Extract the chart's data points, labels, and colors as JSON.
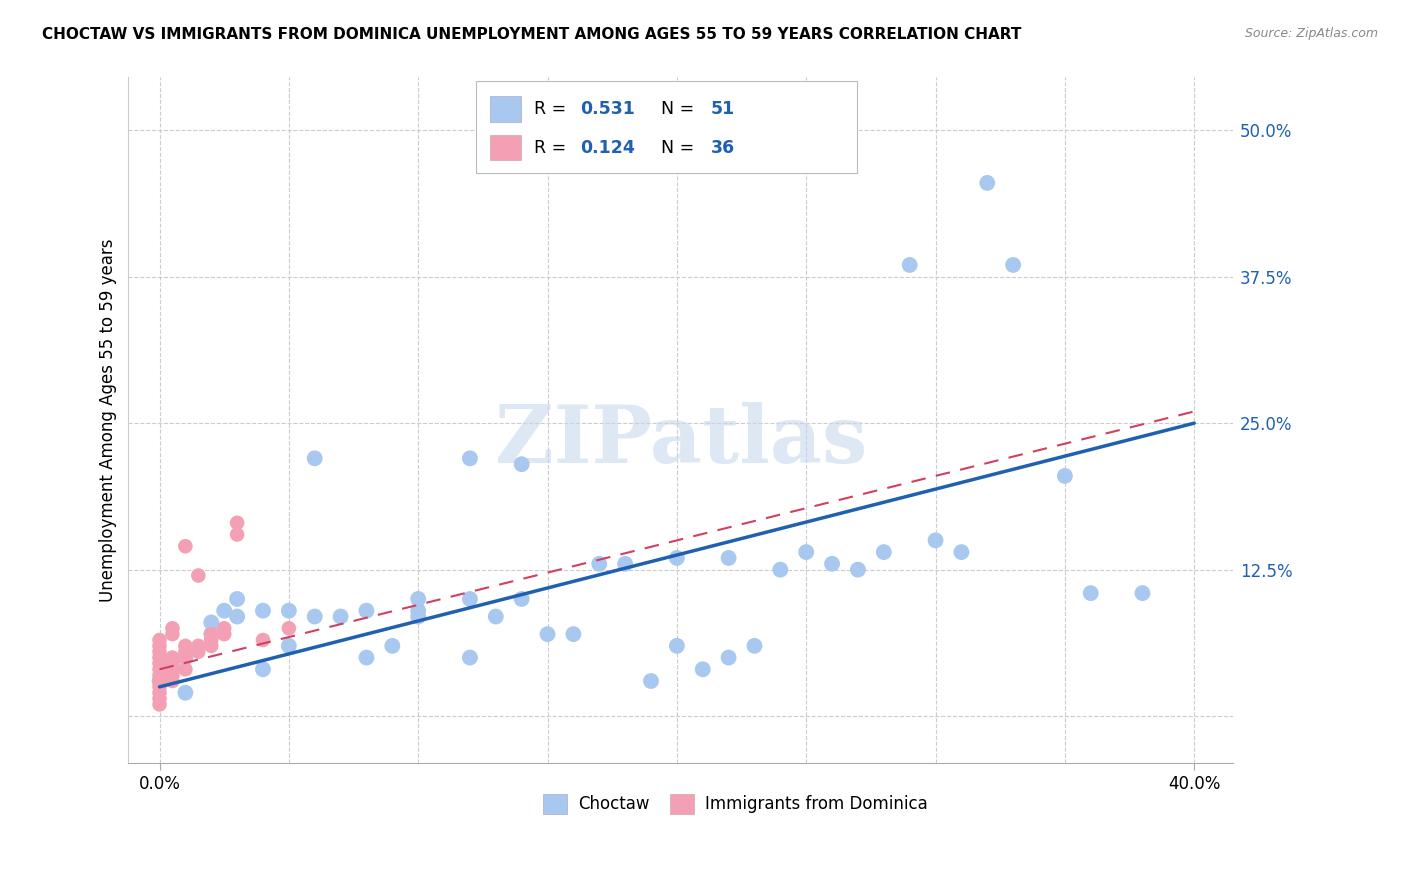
{
  "title": "CHOCTAW VS IMMIGRANTS FROM DOMINICA UNEMPLOYMENT AMONG AGES 55 TO 59 YEARS CORRELATION CHART",
  "source": "Source: ZipAtlas.com",
  "ylabel": "Unemployment Among Ages 55 to 59 years",
  "ytick_values": [
    0.0,
    0.125,
    0.25,
    0.375,
    0.5
  ],
  "ytick_labels": [
    "0.0%",
    "12.5%",
    "25.0%",
    "37.5%",
    "50.0%"
  ],
  "xtick_values": [
    0.0,
    0.4
  ],
  "xtick_labels": [
    "0.0%",
    "40.0%"
  ],
  "xmin": -0.012,
  "xmax": 0.415,
  "ymin": -0.04,
  "ymax": 0.545,
  "blue_color": "#a8c8f0",
  "pink_color": "#f4a0b4",
  "line_blue_color": "#2060b0",
  "line_pink_color": "#d04060",
  "legend_r1": "R = ",
  "legend_v1": "0.531",
  "legend_n1": "N = ",
  "legend_nv1": "51",
  "legend_r2": "R = ",
  "legend_v2": "0.124",
  "legend_n2": "N = ",
  "legend_nv2": "36",
  "legend_label_blue": "Choctaw",
  "legend_label_pink": "Immigrants from Dominica",
  "watermark": "ZIPatlas",
  "blue_points": [
    [
      0.0,
      0.03
    ],
    [
      0.01,
      0.05
    ],
    [
      0.01,
      0.02
    ],
    [
      0.02,
      0.08
    ],
    [
      0.02,
      0.07
    ],
    [
      0.025,
      0.09
    ],
    [
      0.03,
      0.1
    ],
    [
      0.03,
      0.085
    ],
    [
      0.04,
      0.04
    ],
    [
      0.04,
      0.09
    ],
    [
      0.05,
      0.06
    ],
    [
      0.05,
      0.09
    ],
    [
      0.06,
      0.22
    ],
    [
      0.06,
      0.085
    ],
    [
      0.07,
      0.085
    ],
    [
      0.08,
      0.05
    ],
    [
      0.08,
      0.09
    ],
    [
      0.09,
      0.06
    ],
    [
      0.1,
      0.1
    ],
    [
      0.1,
      0.09
    ],
    [
      0.1,
      0.085
    ],
    [
      0.12,
      0.22
    ],
    [
      0.12,
      0.1
    ],
    [
      0.12,
      0.05
    ],
    [
      0.13,
      0.085
    ],
    [
      0.14,
      0.215
    ],
    [
      0.14,
      0.1
    ],
    [
      0.15,
      0.07
    ],
    [
      0.16,
      0.07
    ],
    [
      0.17,
      0.13
    ],
    [
      0.18,
      0.13
    ],
    [
      0.19,
      0.03
    ],
    [
      0.2,
      0.135
    ],
    [
      0.2,
      0.06
    ],
    [
      0.21,
      0.04
    ],
    [
      0.22,
      0.135
    ],
    [
      0.22,
      0.05
    ],
    [
      0.23,
      0.06
    ],
    [
      0.24,
      0.125
    ],
    [
      0.25,
      0.14
    ],
    [
      0.26,
      0.13
    ],
    [
      0.27,
      0.125
    ],
    [
      0.28,
      0.14
    ],
    [
      0.29,
      0.385
    ],
    [
      0.3,
      0.15
    ],
    [
      0.31,
      0.14
    ],
    [
      0.32,
      0.455
    ],
    [
      0.33,
      0.385
    ],
    [
      0.35,
      0.205
    ],
    [
      0.36,
      0.105
    ],
    [
      0.38,
      0.105
    ]
  ],
  "pink_points": [
    [
      0.0,
      0.01
    ],
    [
      0.0,
      0.015
    ],
    [
      0.0,
      0.02
    ],
    [
      0.0,
      0.025
    ],
    [
      0.0,
      0.03
    ],
    [
      0.0,
      0.035
    ],
    [
      0.0,
      0.04
    ],
    [
      0.0,
      0.045
    ],
    [
      0.0,
      0.05
    ],
    [
      0.0,
      0.055
    ],
    [
      0.0,
      0.06
    ],
    [
      0.0,
      0.065
    ],
    [
      0.005,
      0.03
    ],
    [
      0.005,
      0.035
    ],
    [
      0.005,
      0.04
    ],
    [
      0.005,
      0.045
    ],
    [
      0.005,
      0.05
    ],
    [
      0.005,
      0.07
    ],
    [
      0.005,
      0.075
    ],
    [
      0.01,
      0.04
    ],
    [
      0.01,
      0.05
    ],
    [
      0.01,
      0.055
    ],
    [
      0.01,
      0.06
    ],
    [
      0.015,
      0.055
    ],
    [
      0.015,
      0.06
    ],
    [
      0.02,
      0.06
    ],
    [
      0.02,
      0.065
    ],
    [
      0.02,
      0.07
    ],
    [
      0.025,
      0.07
    ],
    [
      0.025,
      0.075
    ],
    [
      0.03,
      0.155
    ],
    [
      0.03,
      0.165
    ],
    [
      0.04,
      0.065
    ],
    [
      0.05,
      0.075
    ],
    [
      0.01,
      0.145
    ],
    [
      0.015,
      0.12
    ]
  ],
  "blue_line_x": [
    0.0,
    0.4
  ],
  "blue_line_y": [
    0.025,
    0.25
  ],
  "pink_line_x": [
    0.0,
    0.4
  ],
  "pink_line_y": [
    0.04,
    0.26
  ]
}
